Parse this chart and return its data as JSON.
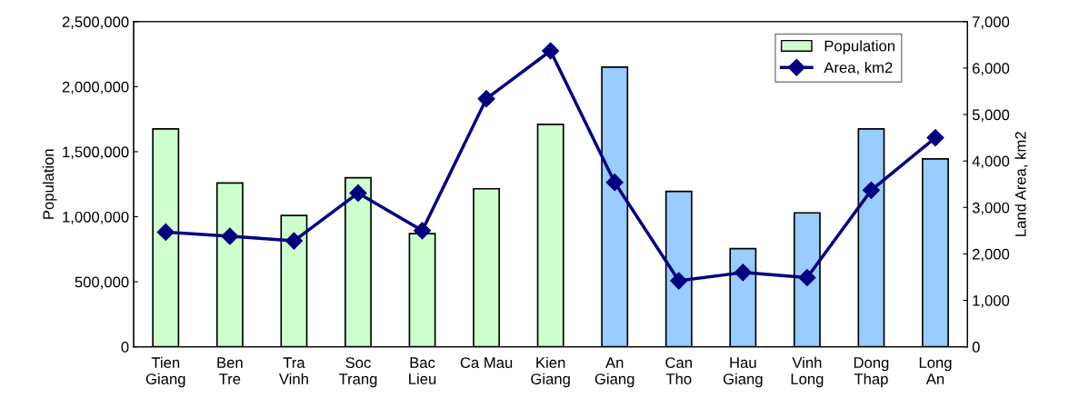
{
  "chart_data": {
    "type": "bar",
    "ylabel": "Population",
    "y2label": "Land Area, km2",
    "categories": [
      "Tien\nGiang",
      "Ben\nTre",
      "Tra\nVinh",
      "Soc\nTrang",
      "Bac\nLieu",
      "Ca Mau",
      "Kien\nGiang",
      "An\nGiang",
      "Can\nTho",
      "Hau\nGiang",
      "Vinh\nLong",
      "Dong\nThap",
      "Long\nAn"
    ],
    "series": [
      {
        "name": "Population",
        "color": "#ccffcc",
        "colors": [
          "#ccffcc",
          "#ccffcc",
          "#ccffcc",
          "#ccffcc",
          "#ccffcc",
          "#ccffcc",
          "#ccffcc",
          "#99ccff",
          "#99ccff",
          "#99ccff",
          "#99ccff",
          "#99ccff",
          "#99ccff"
        ],
        "values": [
          1675000,
          1260000,
          1010000,
          1300000,
          870000,
          1215000,
          1710000,
          2150000,
          1195000,
          755000,
          1030000,
          1675000,
          1445000
        ]
      },
      {
        "name": "Area, km2",
        "type": "line",
        "axis": "y2",
        "color": "#000080",
        "marker": "diamond",
        "values": [
          2470,
          2380,
          2280,
          3310,
          2500,
          5340,
          6370,
          3540,
          1420,
          1600,
          1490,
          3370,
          4500
        ]
      }
    ],
    "ylim": [
      0,
      2500000
    ],
    "yticks": [
      {
        "value": 0,
        "label": "0"
      },
      {
        "value": 500000,
        "label": "500,000"
      },
      {
        "value": 1000000,
        "label": "1,000,000"
      },
      {
        "value": 1500000,
        "label": "1,500,000"
      },
      {
        "value": 2000000,
        "label": "2,000,000"
      },
      {
        "value": 2500000,
        "label": "2,500,000"
      }
    ],
    "y2lim": [
      0,
      7000
    ],
    "y2ticks": [
      {
        "value": 0,
        "label": "0"
      },
      {
        "value": 1000,
        "label": "1,000"
      },
      {
        "value": 2000,
        "label": "2,000"
      },
      {
        "value": 3000,
        "label": "3,000"
      },
      {
        "value": 4000,
        "label": "4,000"
      },
      {
        "value": 5000,
        "label": "5,000"
      },
      {
        "value": 6000,
        "label": "6,000"
      },
      {
        "value": 7000,
        "label": "7,000"
      }
    ],
    "legend": "top right",
    "grid": false
  }
}
